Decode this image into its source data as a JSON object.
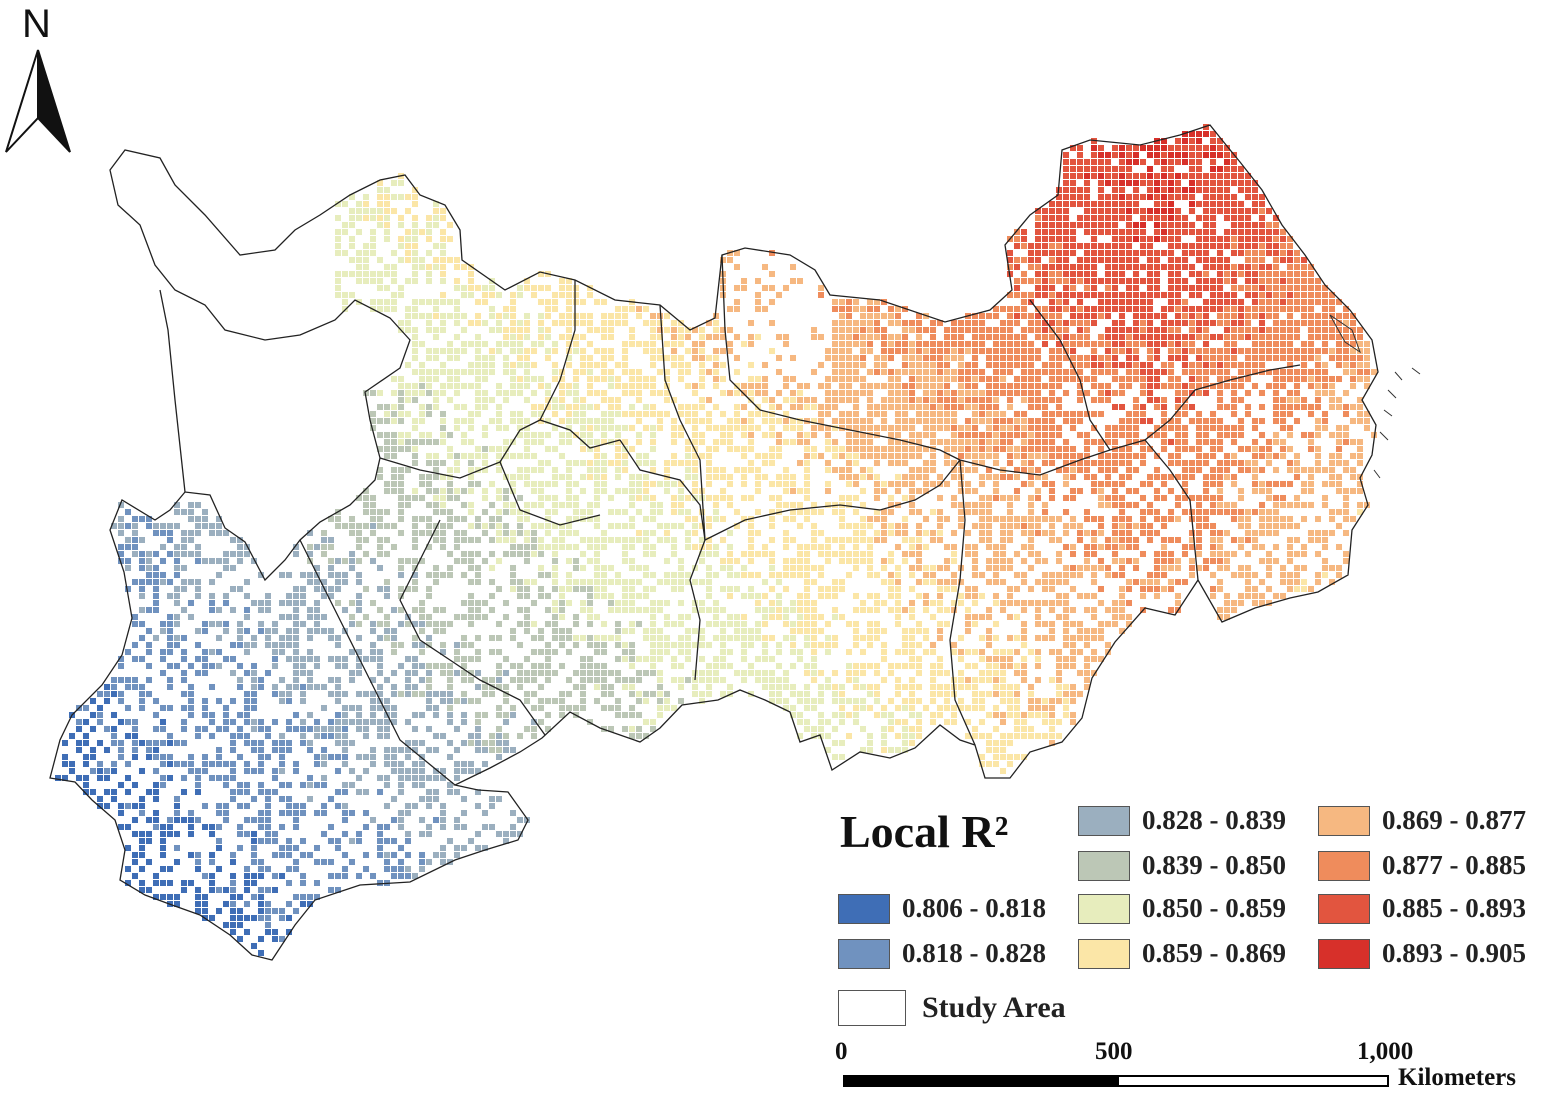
{
  "north_arrow": {
    "label": "N"
  },
  "legend": {
    "title": "Local R²",
    "classes": [
      {
        "label": "0.806 - 0.818",
        "color": "#3f6eb6"
      },
      {
        "label": "0.818 - 0.828",
        "color": "#7092bf"
      },
      {
        "label": "0.828 - 0.839",
        "color": "#9bafbf"
      },
      {
        "label": "0.839 - 0.850",
        "color": "#bcc7b6"
      },
      {
        "label": "0.850 - 0.859",
        "color": "#e7edbd"
      },
      {
        "label": "0.859 - 0.869",
        "color": "#fbe6a7"
      },
      {
        "label": "0.869 - 0.877",
        "color": "#f6b881"
      },
      {
        "label": "0.877 - 0.885",
        "color": "#ef8c5c"
      },
      {
        "label": "0.885 - 0.893",
        "color": "#e2553f"
      },
      {
        "label": "0.893 - 0.905",
        "color": "#d7302a"
      }
    ],
    "study_area_label": "Study Area"
  },
  "scale_bar": {
    "ticks": [
      "0",
      "500",
      "1,000"
    ],
    "unit": "Kilometers"
  }
}
